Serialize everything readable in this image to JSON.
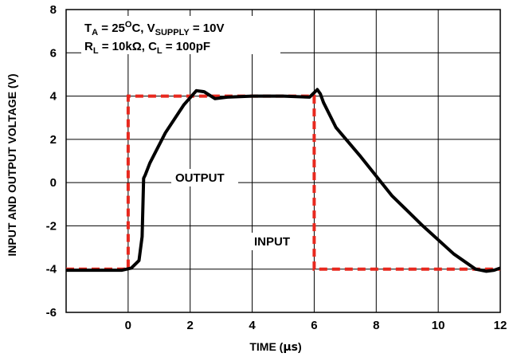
{
  "chart_data": {
    "type": "line",
    "xlabel_prefix": "TIME (",
    "xlabel_unit": "µs",
    "xlabel_suffix": ")",
    "ylabel": "INPUT AND OUTPUT VOLTAGE (V)",
    "xlim": [
      -2,
      12
    ],
    "ylim": [
      -6,
      8
    ],
    "x_ticks": [
      0,
      2,
      4,
      6,
      8,
      10,
      12
    ],
    "x_tick_labels": [
      "0",
      "2",
      "4",
      "6",
      "8",
      "10",
      "12"
    ],
    "y_ticks": [
      -6,
      -4,
      -2,
      0,
      2,
      4,
      6,
      8
    ],
    "y_tick_labels": [
      "-6",
      "-4",
      "-2",
      "0",
      "2",
      "4",
      "6",
      "8"
    ],
    "grid": true,
    "conditions": {
      "line1": {
        "t": "T",
        "t_sub": "A",
        "t_eq": " = 25",
        "t_sup": "O",
        "t_unit": "C, V",
        "v_sub": "SUPPLY",
        "v_eq": " = 10V"
      },
      "line2": {
        "r": "R",
        "r_sub": "L",
        "r_eq": " = 10k",
        "omega": "Ω",
        "c": ", C",
        "c_sub": "L",
        "c_eq": " = 100pF"
      }
    },
    "annotations": {
      "output": "OUTPUT",
      "input": "INPUT"
    },
    "colors": {
      "output": "#000000",
      "input": "#e8281e",
      "grid": "#000000"
    },
    "series": [
      {
        "name": "OUTPUT",
        "style": "solid",
        "x": [
          -2,
          -0.2,
          0.1,
          0.35,
          0.45,
          0.5,
          0.55,
          0.7,
          1.2,
          1.8,
          2.2,
          2.45,
          2.8,
          3.2,
          4.0,
          5.0,
          5.85,
          6.1,
          6.2,
          6.3,
          6.7,
          7.5,
          8.5,
          9.5,
          10.5,
          11.2,
          11.55,
          11.8,
          12
        ],
        "y": [
          -4.05,
          -4.05,
          -3.95,
          -3.6,
          -2.5,
          0.2,
          0.35,
          0.9,
          2.3,
          3.6,
          4.25,
          4.2,
          3.88,
          3.95,
          4.0,
          4.0,
          3.95,
          4.3,
          4.1,
          3.7,
          2.55,
          1.2,
          -0.6,
          -2.0,
          -3.3,
          -4.0,
          -4.1,
          -4.05,
          -3.95
        ]
      },
      {
        "name": "INPUT",
        "style": "dashed",
        "x": [
          -2,
          0,
          0,
          6,
          6,
          12
        ],
        "y": [
          -4,
          -4,
          4,
          4,
          -4,
          -4
        ]
      }
    ]
  }
}
